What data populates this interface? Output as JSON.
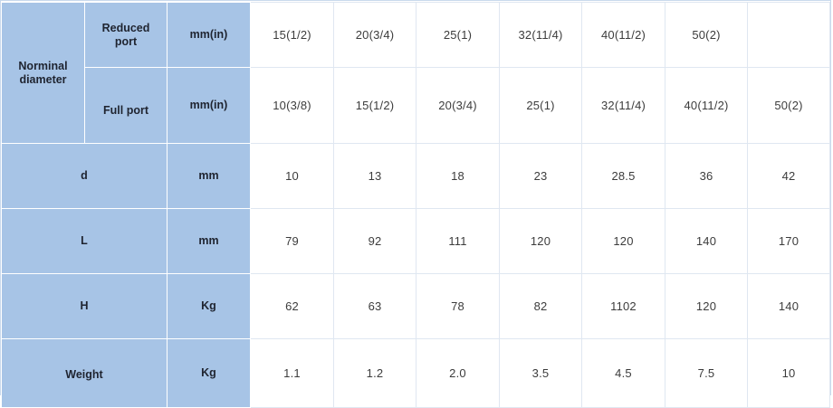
{
  "header": {
    "nominal_diameter": "Norminal diameter",
    "reduced_port": "Reduced port",
    "full_port": "Full port",
    "unit_mm_in": "mm(in)"
  },
  "rows": [
    {
      "key": "reduced",
      "values": [
        "15(1/2)",
        "20(3/4)",
        "25(1)",
        "32(11/4)",
        "40(11/2)",
        "50(2)",
        ""
      ]
    },
    {
      "key": "full",
      "values": [
        "10(3/8)",
        "15(1/2)",
        "20(3/4)",
        "25(1)",
        "32(11/4)",
        "40(11/2)",
        "50(2)"
      ]
    },
    {
      "label": "d",
      "unit": "mm",
      "values": [
        "10",
        "13",
        "18",
        "23",
        "28.5",
        "36",
        "42"
      ]
    },
    {
      "label": "L",
      "unit": "mm",
      "values": [
        "79",
        "92",
        "111",
        "120",
        "120",
        "140",
        "170"
      ]
    },
    {
      "label": "H",
      "unit": "Kg",
      "values": [
        "62",
        "63",
        "78",
        "82",
        "1102",
        "120",
        "140"
      ]
    },
    {
      "label": "Weight",
      "unit": "Kg",
      "values": [
        "1.1",
        "1.2",
        "2.0",
        "3.5",
        "4.5",
        "7.5",
        "10"
      ]
    }
  ]
}
